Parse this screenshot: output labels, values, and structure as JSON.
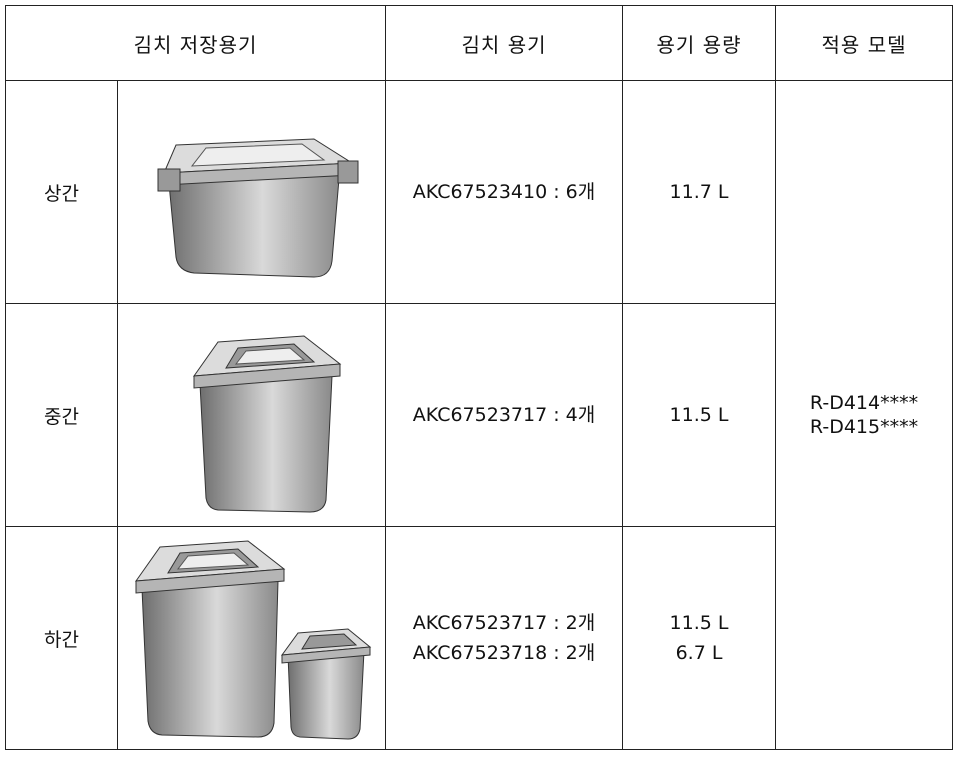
{
  "table": {
    "header": [
      "김치 저장용기",
      "김치 용기",
      "용기 용량",
      "적용 모델"
    ],
    "rows": [
      {
        "label": "상간",
        "containers": [
          "AKC67523410 : 6개"
        ],
        "capacities": [
          "11.7 L"
        ]
      },
      {
        "label": "중간",
        "containers": [
          "AKC67523717 : 4개"
        ],
        "capacities": [
          "11.5 L"
        ]
      },
      {
        "label": "하간",
        "containers": [
          "AKC67523717 : 2개",
          "AKC67523718 : 2개"
        ],
        "capacities": [
          "11.5 L",
          "6.7 L"
        ]
      }
    ],
    "models": [
      "R-D414****",
      "R-D415****"
    ]
  }
}
